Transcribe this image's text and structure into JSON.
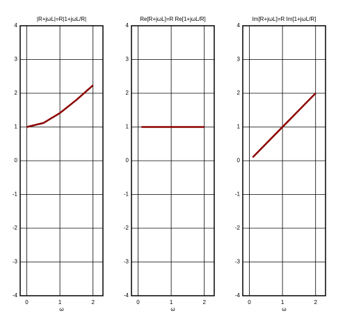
{
  "chart_data": [
    {
      "type": "line",
      "title": "|R+jωL|=R|1+jωL/R|",
      "xlabel": "ω",
      "x": [
        0,
        0.5,
        1,
        1.5,
        2
      ],
      "values": [
        1,
        1.118,
        1.414,
        1.803,
        2.236
      ],
      "color": "#8b0000",
      "xlim": [
        -0.2,
        2.3
      ],
      "ylim": [
        -4,
        4
      ],
      "xticks": [
        0,
        1,
        2
      ],
      "yticks": [
        -4,
        -3,
        -2,
        -1,
        0,
        1,
        2,
        3,
        4
      ],
      "grid": true
    },
    {
      "type": "line",
      "title": "Re[R+jωL]=R Re[1+jωL/R]",
      "xlabel": "ω",
      "x": [
        0.1,
        2
      ],
      "values": [
        1,
        1
      ],
      "color": "#8b0000",
      "xlim": [
        -0.2,
        2.3
      ],
      "ylim": [
        -4,
        4
      ],
      "xticks": [
        0,
        1,
        2
      ],
      "yticks": [
        -4,
        -3,
        -2,
        -1,
        0,
        1,
        2,
        3,
        4
      ],
      "grid": true
    },
    {
      "type": "line",
      "title": "Im[R+jωL]=R Im[1+jωL/R]",
      "xlabel": "ω",
      "x": [
        0.1,
        2
      ],
      "values": [
        0.1,
        2
      ],
      "color": "#8b0000",
      "xlim": [
        -0.2,
        2.3
      ],
      "ylim": [
        -4,
        4
      ],
      "xticks": [
        0,
        1,
        2
      ],
      "yticks": [
        -4,
        -3,
        -2,
        -1,
        0,
        1,
        2,
        3,
        4
      ],
      "grid": true
    }
  ]
}
